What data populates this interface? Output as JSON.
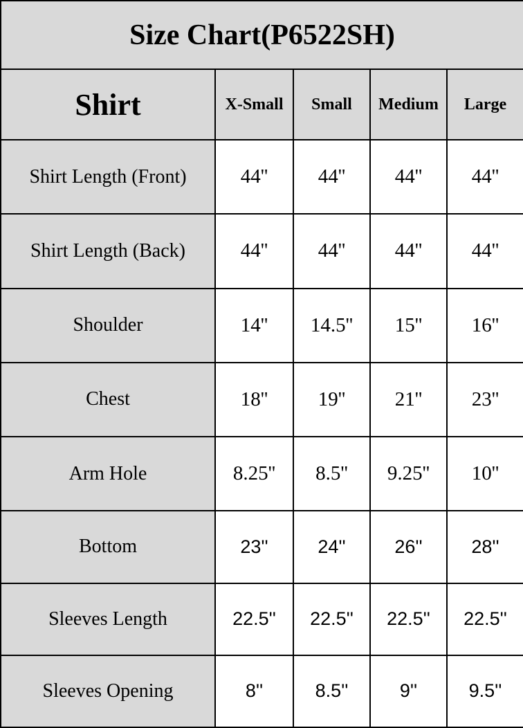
{
  "title": "Size Chart(P6522SH)",
  "table": {
    "corner_label": "Shirt",
    "size_headers": [
      "X-Small",
      "Small",
      "Medium",
      "Large"
    ],
    "rows": [
      {
        "label": "Shirt Length (Front)",
        "values": [
          "44''",
          "44''",
          "44''",
          "44''"
        ]
      },
      {
        "label": "Shirt Length (Back)",
        "values": [
          "44''",
          "44''",
          "44''",
          "44''"
        ]
      },
      {
        "label": "Shoulder",
        "values": [
          "14''",
          "14.5''",
          "15''",
          "16''"
        ]
      },
      {
        "label": "Chest",
        "values": [
          "18''",
          "19''",
          "21''",
          "23''"
        ]
      },
      {
        "label": "Arm Hole",
        "values": [
          "8.25''",
          "8.5''",
          "9.25''",
          "10''"
        ]
      },
      {
        "label": "Bottom",
        "values": [
          "23''",
          "24''",
          "26''",
          "28''"
        ]
      },
      {
        "label": "Sleeves Length",
        "values": [
          "22.5''",
          "22.5''",
          "22.5''",
          "22.5''"
        ]
      },
      {
        "label": "Sleeves Opening",
        "values": [
          "8''",
          "8.5''",
          "9''",
          "9.5''"
        ]
      }
    ]
  },
  "colors": {
    "header_bg": "#d9d9d9",
    "body_bg": "#ffffff",
    "border": "#000000",
    "text": "#000000"
  },
  "chart_data": {
    "type": "table",
    "title": "Size Chart(P6522SH)",
    "unit": "inches",
    "columns": [
      "Shirt",
      "X-Small",
      "Small",
      "Medium",
      "Large"
    ],
    "rows": [
      [
        "Shirt Length (Front)",
        44,
        44,
        44,
        44
      ],
      [
        "Shirt Length (Back)",
        44,
        44,
        44,
        44
      ],
      [
        "Shoulder",
        14,
        14.5,
        15,
        16
      ],
      [
        "Chest",
        18,
        19,
        21,
        23
      ],
      [
        "Arm Hole",
        8.25,
        8.5,
        9.25,
        10
      ],
      [
        "Bottom",
        23,
        24,
        26,
        28
      ],
      [
        "Sleeves Length",
        22.5,
        22.5,
        22.5,
        22.5
      ],
      [
        "Sleeves Opening",
        8,
        8.5,
        9,
        9.5
      ]
    ]
  }
}
